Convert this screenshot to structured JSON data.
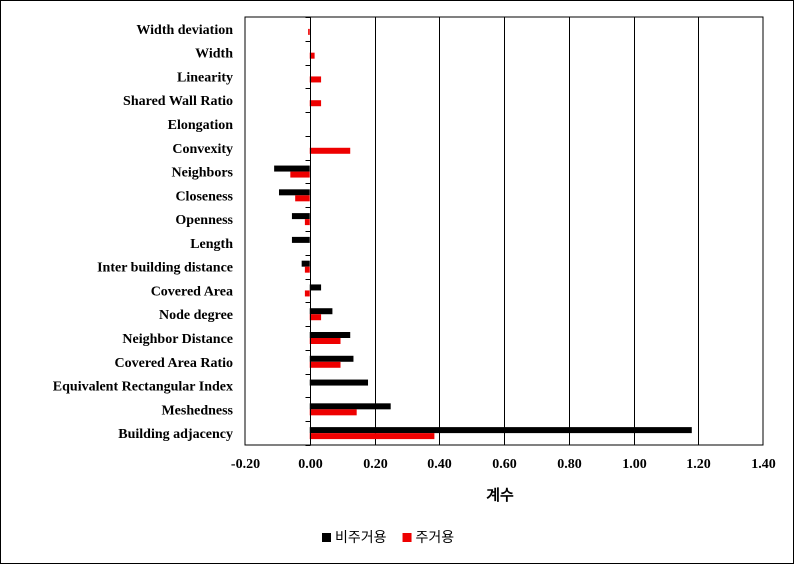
{
  "chart_data": {
    "type": "bar",
    "orientation": "horizontal",
    "categories": [
      "Width deviation",
      "Width",
      "Linearity",
      "Shared Wall Ratio",
      "Elongation",
      "Convexity",
      "Neighbors",
      "Closeness",
      "Openness",
      "Length",
      "Inter building distance",
      "Covered Area",
      "Node degree",
      "Neighbor Distance",
      "Covered Area Ratio",
      "Equivalent Rectangular Index",
      "Meshedness",
      "Building adjacency"
    ],
    "series": [
      {
        "name": "비주거용",
        "color": "#000000",
        "values": [
          0.0,
          0.0,
          0.0,
          0.0,
          0.0,
          0.0,
          -0.11,
          -0.095,
          -0.055,
          -0.055,
          -0.025,
          0.035,
          0.07,
          0.125,
          0.135,
          0.18,
          0.25,
          1.18
        ]
      },
      {
        "name": "주거용",
        "color": "#ee0000",
        "values": [
          -0.005,
          0.015,
          0.035,
          0.035,
          0.0,
          0.125,
          -0.06,
          -0.045,
          -0.015,
          0.0,
          -0.015,
          -0.015,
          0.035,
          0.095,
          0.095,
          0.0,
          0.145,
          0.385
        ]
      }
    ],
    "xlim": [
      -0.2,
      1.4
    ],
    "xticks": [
      "-0.20",
      "0.00",
      "0.20",
      "0.40",
      "0.60",
      "0.80",
      "1.00",
      "1.20",
      "1.40"
    ],
    "xlabel": "계수",
    "ylabel": "",
    "title": "",
    "grid": "vertical",
    "legend_position": "bottom"
  }
}
